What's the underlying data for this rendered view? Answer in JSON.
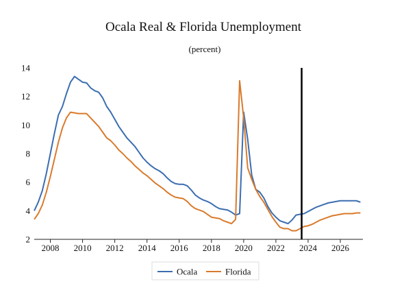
{
  "chart_data": {
    "type": "line",
    "title": "Ocala Real & Florida Unemployment",
    "subtitle": "(percent)",
    "xlabel": "",
    "ylabel": "",
    "xlim": [
      2007.0,
      2027.4
    ],
    "ylim": [
      2,
      14
    ],
    "yticks": [
      2,
      4,
      6,
      8,
      10,
      12,
      14
    ],
    "xticks": [
      2008,
      2010,
      2012,
      2014,
      2016,
      2018,
      2020,
      2022,
      2024,
      2026
    ],
    "grid": false,
    "legend_position": "bottom-center",
    "vertical_marker": 2023.6,
    "x": [
      2007.0,
      2007.25,
      2007.5,
      2007.75,
      2008.0,
      2008.25,
      2008.5,
      2008.75,
      2009.0,
      2009.25,
      2009.5,
      2009.75,
      2010.0,
      2010.25,
      2010.5,
      2010.75,
      2011.0,
      2011.25,
      2011.5,
      2011.75,
      2012.0,
      2012.25,
      2012.5,
      2012.75,
      2013.0,
      2013.25,
      2013.5,
      2013.75,
      2014.0,
      2014.25,
      2014.5,
      2014.75,
      2015.0,
      2015.25,
      2015.5,
      2015.75,
      2016.0,
      2016.25,
      2016.5,
      2016.75,
      2017.0,
      2017.25,
      2017.5,
      2017.75,
      2018.0,
      2018.25,
      2018.5,
      2018.75,
      2019.0,
      2019.25,
      2019.5,
      2019.75,
      2020.0,
      2020.25,
      2020.5,
      2020.75,
      2021.0,
      2021.25,
      2021.5,
      2021.75,
      2022.0,
      2022.25,
      2022.5,
      2022.75,
      2023.0,
      2023.25,
      2023.5,
      2023.75,
      2024.0,
      2024.25,
      2024.5,
      2024.75,
      2025.0,
      2025.25,
      2025.5,
      2025.75,
      2026.0,
      2026.25,
      2026.5,
      2026.75,
      2027.0,
      2027.25
    ],
    "series": [
      {
        "name": "Ocala",
        "color": "#3a6db0",
        "values": [
          4.0,
          4.6,
          5.4,
          6.6,
          8.0,
          9.4,
          10.7,
          11.3,
          12.2,
          13.0,
          13.4,
          13.2,
          13.0,
          12.95,
          12.6,
          12.4,
          12.3,
          11.9,
          11.3,
          10.9,
          10.4,
          9.9,
          9.5,
          9.1,
          8.8,
          8.5,
          8.1,
          7.7,
          7.4,
          7.15,
          6.95,
          6.8,
          6.6,
          6.3,
          6.05,
          5.9,
          5.85,
          5.85,
          5.75,
          5.45,
          5.1,
          4.9,
          4.75,
          4.65,
          4.5,
          4.3,
          4.15,
          4.1,
          4.05,
          3.9,
          3.7,
          3.8,
          10.9,
          9.0,
          6.5,
          5.5,
          5.3,
          4.9,
          4.3,
          3.85,
          3.55,
          3.3,
          3.2,
          3.1,
          3.35,
          3.7,
          3.75,
          3.8,
          3.95,
          4.1,
          4.25,
          4.35,
          4.45,
          4.55,
          4.6,
          4.65,
          4.7,
          4.7,
          4.7,
          4.7,
          4.7,
          4.6
        ]
      },
      {
        "name": "Florida",
        "color": "#d97a2b",
        "values": [
          3.4,
          3.8,
          4.4,
          5.3,
          6.4,
          7.6,
          8.8,
          9.8,
          10.5,
          10.9,
          10.85,
          10.8,
          10.8,
          10.8,
          10.5,
          10.2,
          9.9,
          9.5,
          9.1,
          8.9,
          8.6,
          8.25,
          8.0,
          7.7,
          7.45,
          7.15,
          6.9,
          6.65,
          6.45,
          6.2,
          5.95,
          5.75,
          5.55,
          5.3,
          5.1,
          4.95,
          4.9,
          4.85,
          4.65,
          4.35,
          4.15,
          4.05,
          3.95,
          3.75,
          3.55,
          3.5,
          3.45,
          3.3,
          3.2,
          3.1,
          3.4,
          13.1,
          10.5,
          7.0,
          6.2,
          5.5,
          5.0,
          4.6,
          4.1,
          3.6,
          3.2,
          2.85,
          2.75,
          2.75,
          2.6,
          2.6,
          2.75,
          2.9,
          2.95,
          3.05,
          3.2,
          3.35,
          3.45,
          3.55,
          3.65,
          3.7,
          3.75,
          3.8,
          3.8,
          3.8,
          3.85,
          3.85
        ]
      }
    ]
  }
}
